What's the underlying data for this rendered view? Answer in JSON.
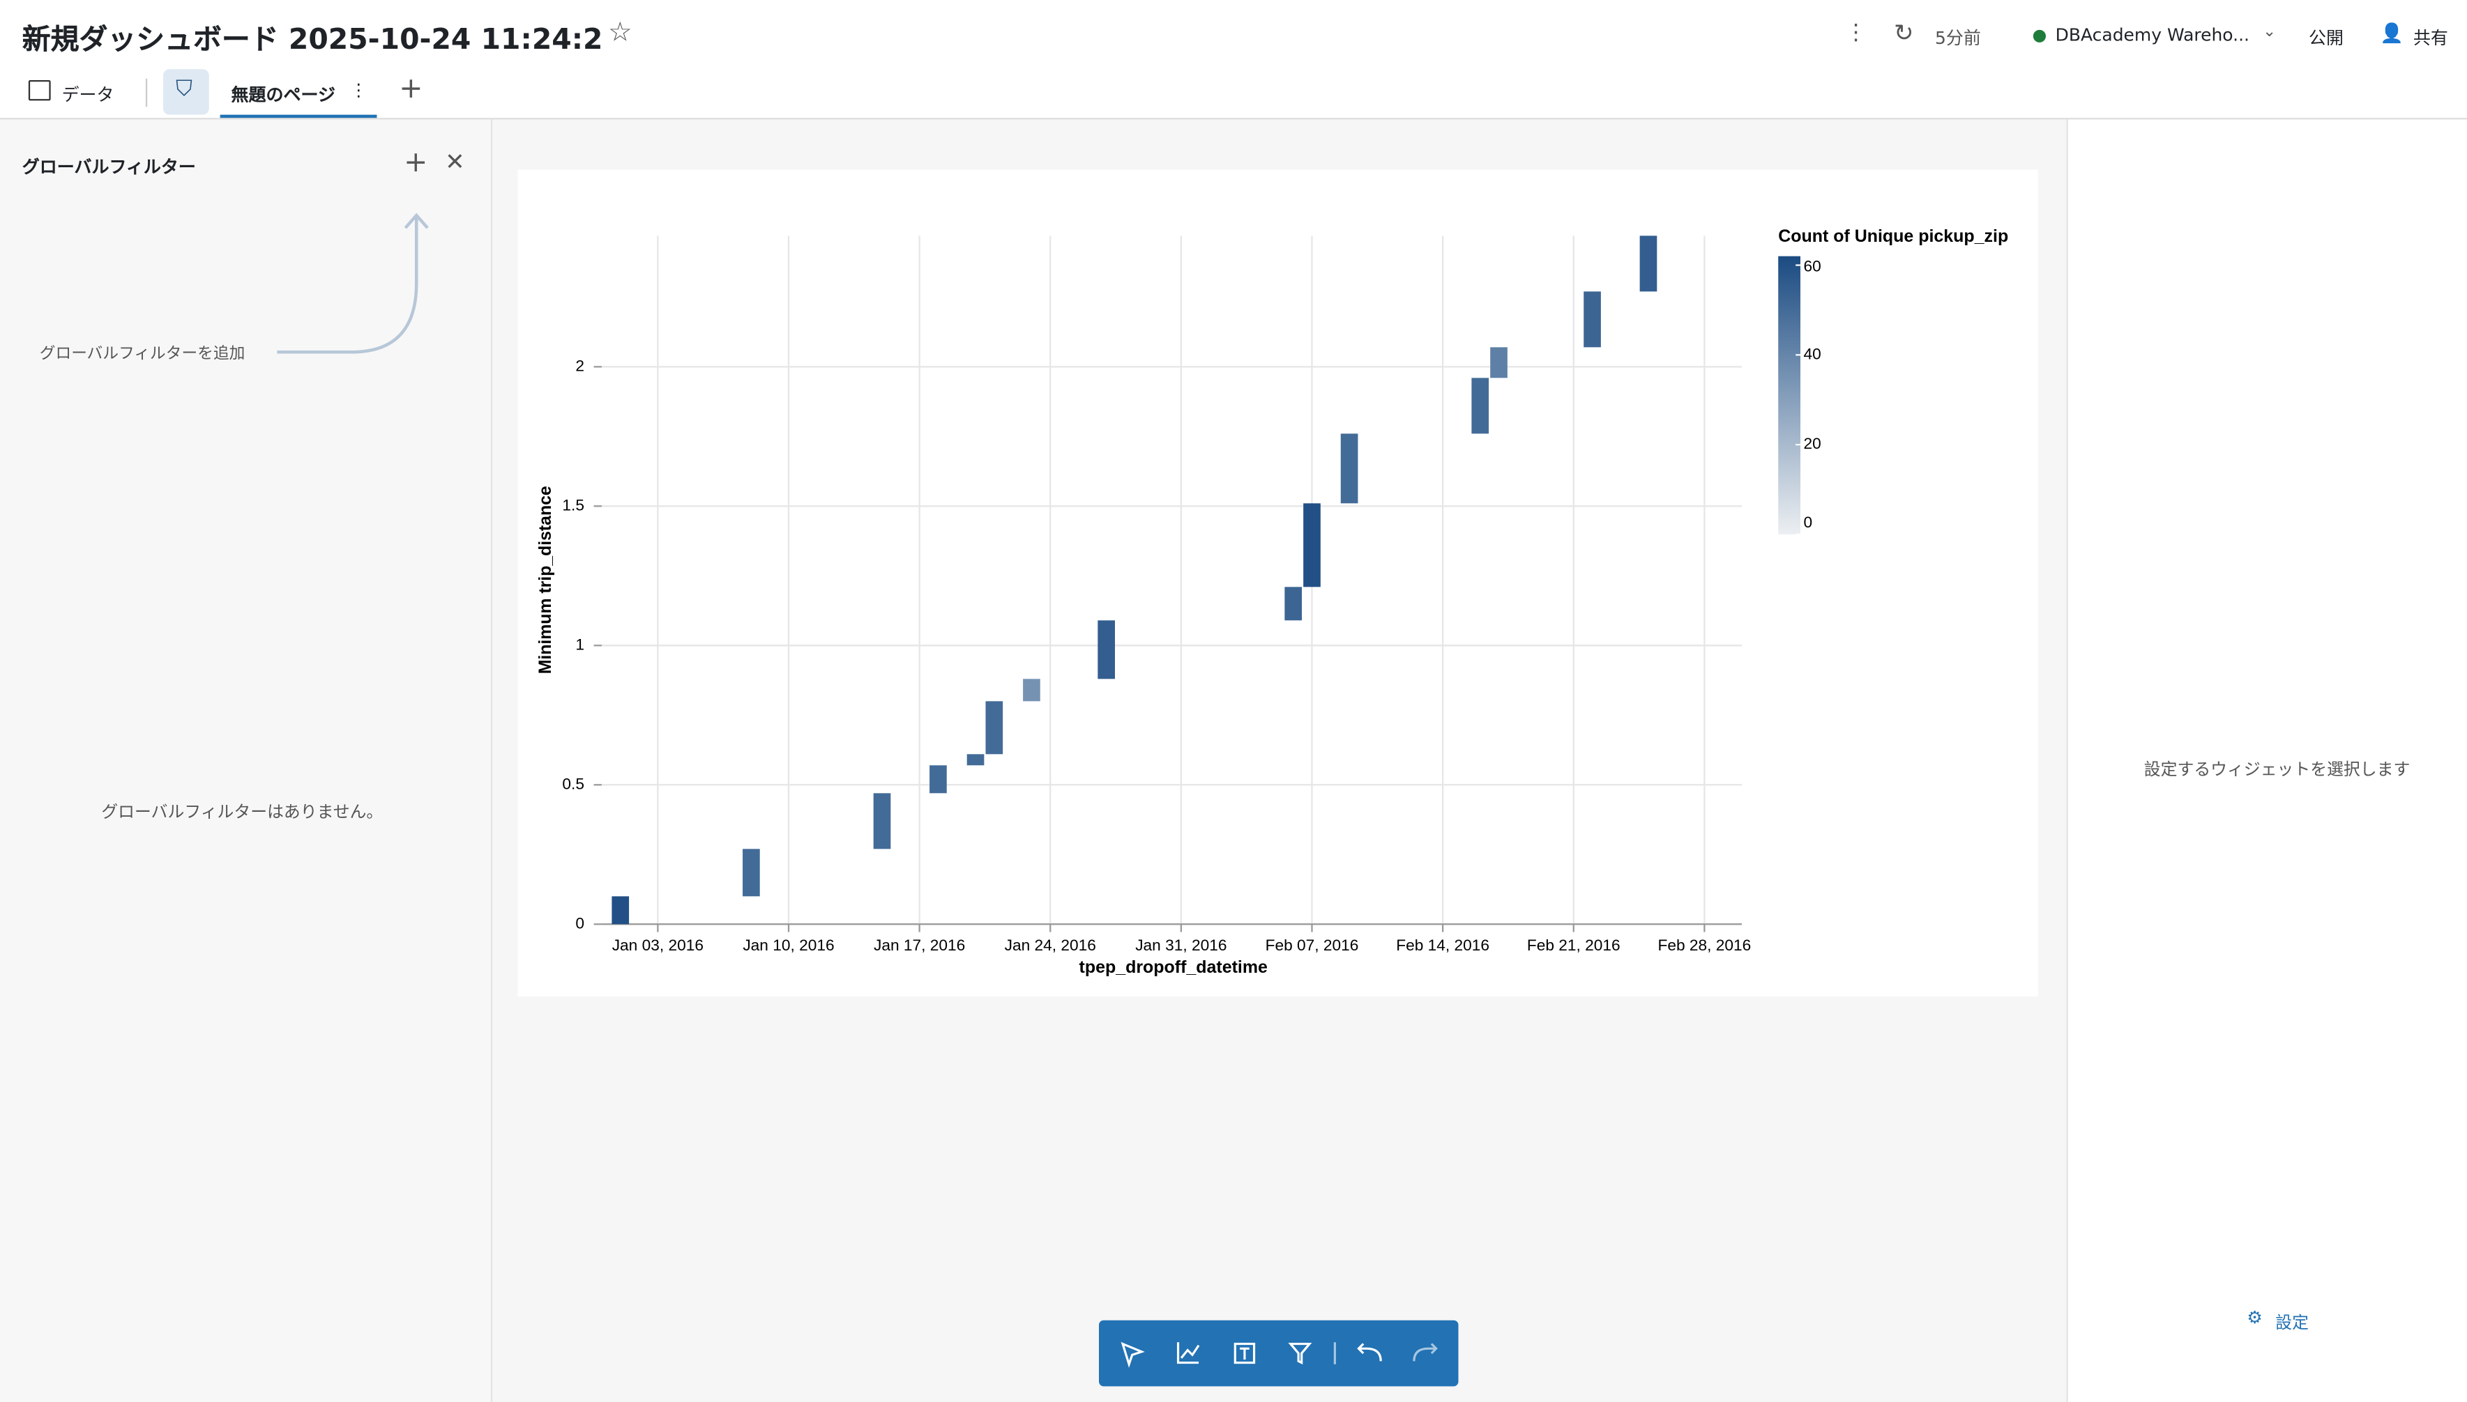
{
  "header": {
    "title": "新規ダッシュボード 2025-10-24 11:24:2",
    "refreshed": "5分前",
    "warehouse": "DBAcademy Wareho...",
    "publish": "公開",
    "share": "共有"
  },
  "tabs": {
    "data": "データ",
    "page": "無題のページ"
  },
  "left_panel": {
    "title": "グローバルフィルター",
    "add_hint": "グローバルフィルターを追加",
    "empty": "グローバルフィルターはありません。"
  },
  "right_panel": {
    "hint": "設定するウィジェットを選択します",
    "settings": "設定"
  },
  "chart_data": {
    "type": "heatmap",
    "x_label": "tpep_dropoff_datetime",
    "y_label": "Minimum trip_distance",
    "legend_title": "Count of Unique pickup_zip",
    "x": [
      "2016-01-01",
      "2016-01-08",
      "2016-01-15",
      "2016-01-18",
      "2016-01-20",
      "2016-01-21",
      "2016-01-23",
      "2016-01-27",
      "2016-02-06",
      "2016-02-07",
      "2016-02-09",
      "2016-02-16",
      "2016-02-17",
      "2016-02-22",
      "2016-02-25"
    ],
    "y_start": [
      0,
      0.1,
      0.27,
      0.47,
      0.57,
      0.61,
      0.8,
      0.88,
      1.09,
      1.21,
      1.51,
      1.76,
      1.96,
      2.07,
      2.27
    ],
    "y_end": [
      0.1,
      0.27,
      0.47,
      0.57,
      0.61,
      0.8,
      0.88,
      1.09,
      1.21,
      1.51,
      1.76,
      1.96,
      2.07,
      2.27,
      2.47
    ],
    "values": [
      60,
      50,
      50,
      50,
      50,
      50,
      35,
      55,
      52,
      60,
      50,
      50,
      42,
      52,
      55
    ],
    "xlim": [
      "2015-12-31",
      "2016-03-01"
    ],
    "xticks": [
      {
        "value": "2016-01-03",
        "label": "Jan 03, 2016"
      },
      {
        "value": "2016-01-10",
        "label": "Jan 10, 2016"
      },
      {
        "value": "2016-01-17",
        "label": "Jan 17, 2016"
      },
      {
        "value": "2016-01-24",
        "label": "Jan 24, 2016"
      },
      {
        "value": "2016-01-31",
        "label": "Jan 31, 2016"
      },
      {
        "value": "2016-02-07",
        "label": "Feb 07, 2016"
      },
      {
        "value": "2016-02-14",
        "label": "Feb 14, 2016"
      },
      {
        "value": "2016-02-21",
        "label": "Feb 21, 2016"
      },
      {
        "value": "2016-02-28",
        "label": "Feb 28, 2016"
      }
    ],
    "ylim": [
      0,
      2.47
    ],
    "yticks": [
      0,
      0.5,
      1,
      1.5,
      2
    ],
    "clim": [
      0,
      62
    ],
    "cticks": [
      0,
      20,
      40,
      60
    ],
    "color_range": [
      "#eceff2",
      "#1b4b82"
    ],
    "grid": true
  }
}
